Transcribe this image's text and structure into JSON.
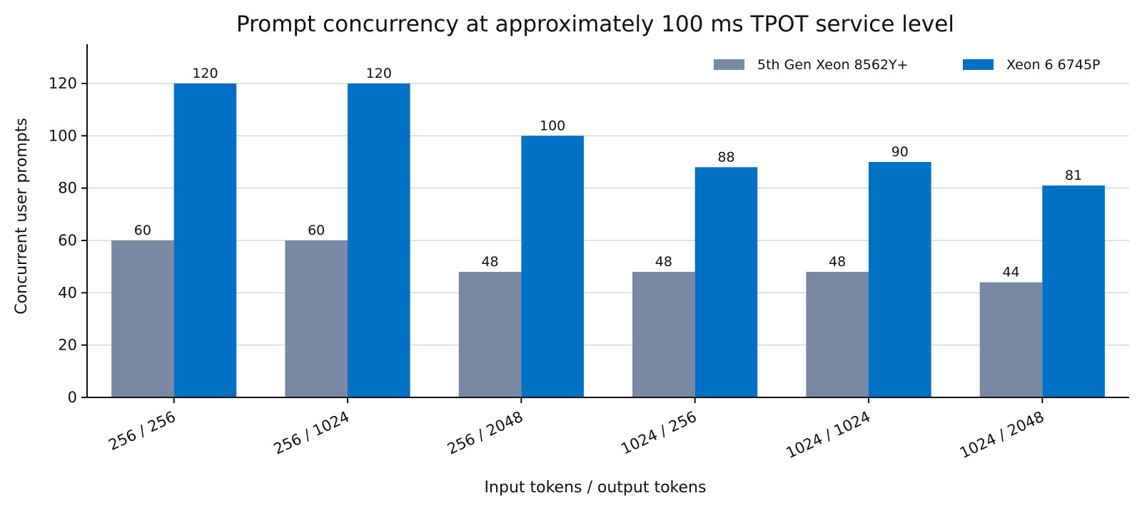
{
  "chart_data": {
    "type": "bar",
    "title": "Prompt concurrency at approximately 100 ms TPOT service level",
    "xlabel": "Input tokens / output tokens",
    "ylabel": "Concurrent user prompts",
    "categories": [
      "256 / 256",
      "256 / 1024",
      "256 / 2048",
      "1024 / 256",
      "1024 / 1024",
      "1024 / 2048"
    ],
    "series": [
      {
        "name": "5th Gen Xeon 8562Y+",
        "color": "#7a89a3",
        "values": [
          60,
          60,
          48,
          48,
          48,
          44
        ]
      },
      {
        "name": "Xeon 6 6745P",
        "color": "#0071c5",
        "values": [
          120,
          120,
          100,
          88,
          90,
          81
        ]
      }
    ],
    "ylim": [
      0,
      135
    ],
    "yticks": [
      0,
      20,
      40,
      60,
      80,
      100,
      120
    ],
    "grid": true,
    "legend_position": "top-right",
    "data_labels": true
  }
}
